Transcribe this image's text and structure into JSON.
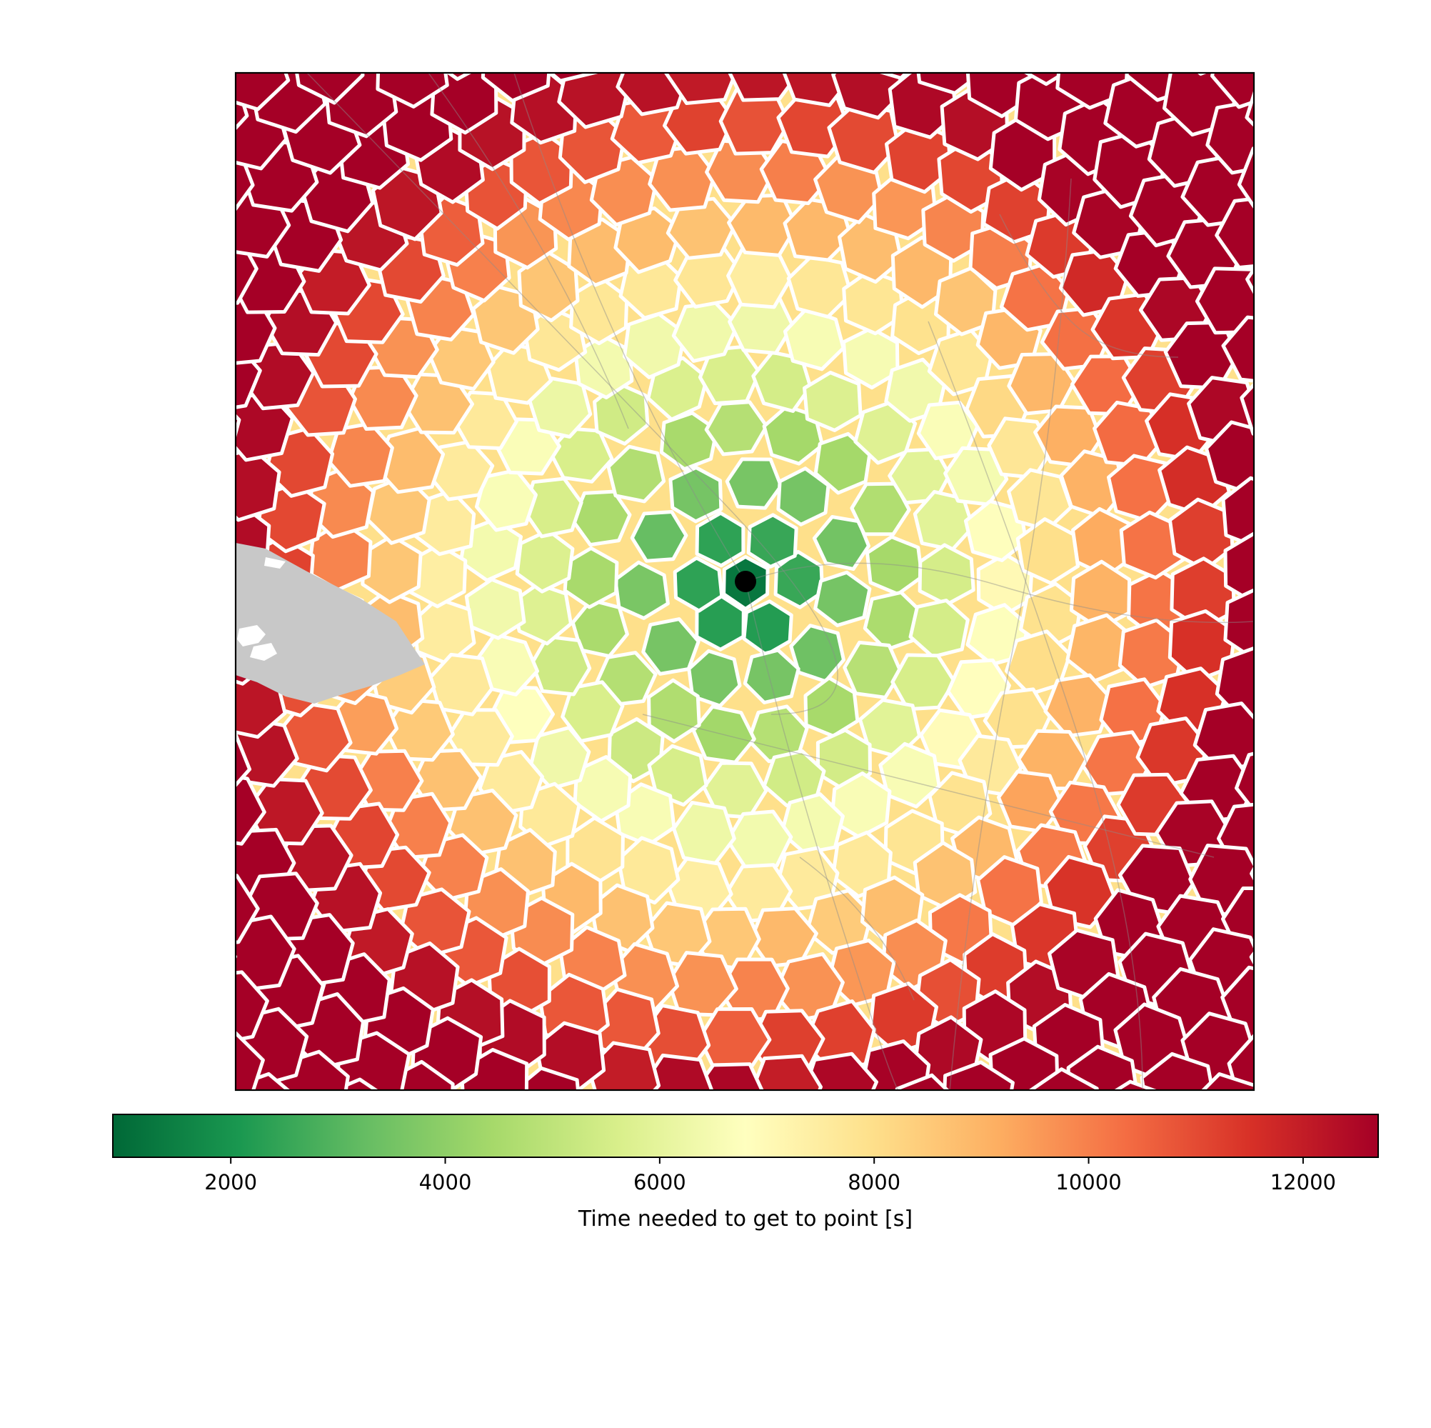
{
  "chart_data": {
    "type": "heatmap",
    "title": "",
    "xlabel": "",
    "ylabel": "",
    "map": {
      "origin_marker": "black-dot",
      "water_color": "#c8c8c8",
      "cell_border_color": "#ffffff",
      "roads_color": "#8c8c8c"
    },
    "colorbar": {
      "label": "Time needed to get to point [s]",
      "colormap": "RdYlGn_r",
      "range": [
        900,
        12700
      ],
      "ticks": [
        2000,
        4000,
        6000,
        8000,
        10000,
        12000
      ],
      "tick_labels": [
        "2000",
        "4000",
        "6000",
        "8000",
        "10000",
        "12000"
      ],
      "stops": [
        {
          "value": 0.0,
          "color": "#006837"
        },
        {
          "value": 0.1,
          "color": "#1a9850"
        },
        {
          "value": 0.2,
          "color": "#66bd63"
        },
        {
          "value": 0.3,
          "color": "#a6d96a"
        },
        {
          "value": 0.4,
          "color": "#d9ef8b"
        },
        {
          "value": 0.5,
          "color": "#ffffbf"
        },
        {
          "value": 0.6,
          "color": "#fee08b"
        },
        {
          "value": 0.7,
          "color": "#fdae61"
        },
        {
          "value": 0.8,
          "color": "#f46d43"
        },
        {
          "value": 0.9,
          "color": "#d73027"
        },
        {
          "value": 1.0,
          "color": "#a50026"
        }
      ]
    },
    "travel_time_model": {
      "center_value": 1200,
      "rings_seconds": [
        1200,
        2400,
        3500,
        4600,
        5600,
        6500,
        7600,
        8700,
        9800,
        11000,
        12300
      ]
    }
  }
}
